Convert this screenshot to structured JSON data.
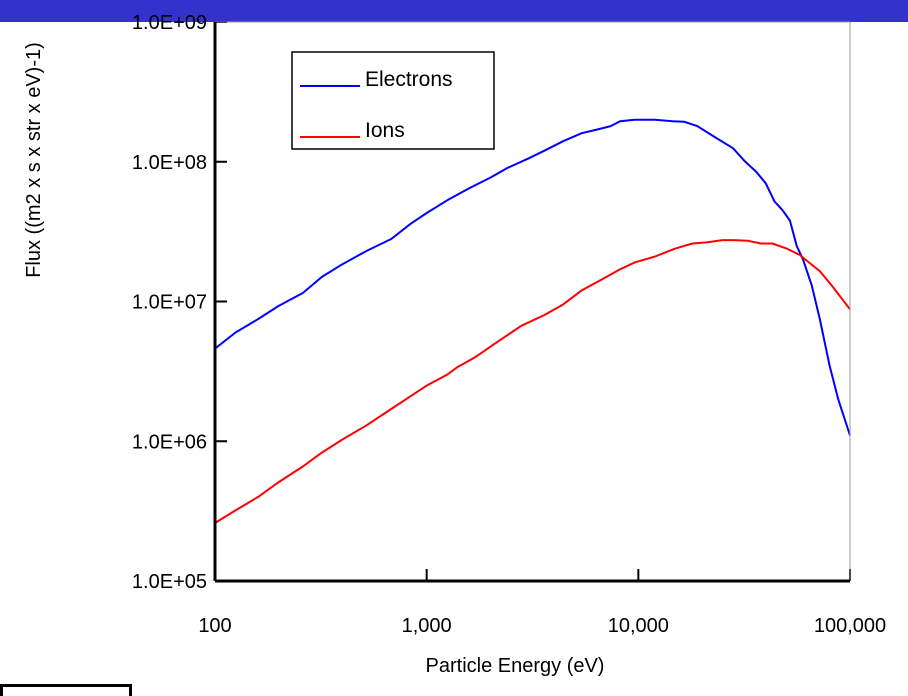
{
  "colors": {
    "top_band": "#3333cc",
    "electrons": "#0000ff",
    "ions": "#ff0000",
    "axis": "#000000"
  },
  "chart_data": {
    "type": "line",
    "xscale": "log",
    "yscale": "log",
    "xlabel": "Particle Energy (eV)",
    "ylabel": "Flux ((m2 x s x str x eV)-1)",
    "xlim": [
      100,
      100000
    ],
    "ylim": [
      100000,
      1000000000
    ],
    "x_tick_values": [
      100,
      1000,
      10000,
      100000
    ],
    "x_tick_labels": [
      "100",
      "1,000",
      "10,000",
      "100,000"
    ],
    "y_tick_values": [
      100000,
      1000000,
      10000000,
      100000000,
      1000000000
    ],
    "y_tick_labels": [
      "1.0E+05",
      "1.0E+06",
      "1.0E+07",
      "1.0E+08",
      "1.0E+09"
    ],
    "grid": false,
    "legend_position": "top-left",
    "series": [
      {
        "name": "Electrons",
        "color": "#0000ff",
        "x": [
          100,
          125,
          160,
          200,
          260,
          320,
          400,
          520,
          680,
          840,
          1000,
          1250,
          1600,
          2000,
          2400,
          3000,
          3600,
          4400,
          5400,
          6400,
          7400,
          8200,
          9600,
          12000,
          14500,
          16500,
          19000,
          23000,
          28000,
          32000,
          36000,
          40000,
          44000,
          48000,
          52000,
          56000,
          60000,
          66000,
          72000,
          80000,
          88000,
          100000
        ],
        "y": [
          4600000.0,
          6000000.0,
          7500000.0,
          9300000.0,
          11500000.0,
          15000000.0,
          18500000.0,
          23000000.0,
          28000000.0,
          36000000.0,
          43000000.0,
          53000000.0,
          65000000.0,
          77000000.0,
          90000000.0,
          105000000.0,
          120000000.0,
          140000000.0,
          160000000.0,
          170000000.0,
          180000000.0,
          195000000.0,
          200000000.0,
          200000000.0,
          195000000.0,
          193000000.0,
          180000000.0,
          150000000.0,
          125000000.0,
          100000000.0,
          85000000.0,
          70000000.0,
          52000000.0,
          45000000.0,
          38000000.0,
          25000000.0,
          20000000.0,
          13000000.0,
          7500000.0,
          3500000.0,
          2000000.0,
          1100000.0
        ]
      },
      {
        "name": "Ions",
        "color": "#ff0000",
        "x": [
          100,
          125,
          160,
          200,
          260,
          320,
          400,
          520,
          680,
          840,
          1000,
          1250,
          1400,
          1700,
          2100,
          2800,
          3600,
          4400,
          5400,
          6800,
          8200,
          9600,
          12000,
          15000,
          18000,
          21000,
          25000,
          28000,
          33000,
          38000,
          43000,
          50000,
          58000,
          64000,
          72000,
          82000,
          100000
        ],
        "y": [
          260000.0,
          320000.0,
          400000.0,
          510000.0,
          660000.0,
          830000.0,
          1030000.0,
          1300000.0,
          1700000.0,
          2100000.0,
          2500000.0,
          3000000.0,
          3400000.0,
          4000000.0,
          5000000.0,
          6700000.0,
          8000000.0,
          9500000.0,
          12000000.0,
          14500000.0,
          17000000.0,
          19000000.0,
          21000000.0,
          24000000.0,
          26000000.0,
          26500000.0,
          27500000.0,
          27500000.0,
          27200000.0,
          26000000.0,
          26000000.0,
          24000000.0,
          21500000.0,
          19000000.0,
          16500000.0,
          13000000.0,
          8800000.0
        ]
      }
    ]
  }
}
